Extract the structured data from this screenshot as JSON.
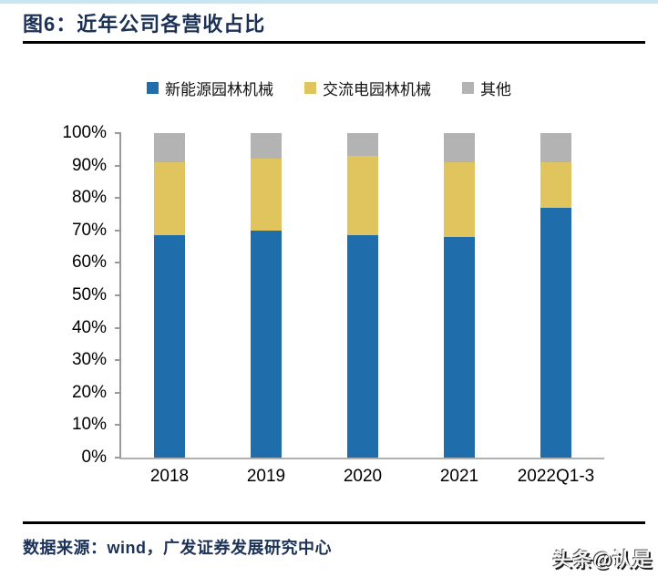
{
  "header": {
    "title": "图6：近年公司各营收占比"
  },
  "legend": [
    {
      "label": "新能源园林机械",
      "color": "#1f6dab"
    },
    {
      "label": "交流电园林机械",
      "color": "#e0c55e"
    },
    {
      "label": "其他",
      "color": "#b3b3b3"
    }
  ],
  "chart_data": {
    "type": "bar",
    "stacked": true,
    "title": "图6：近年公司各营收占比",
    "categories": [
      "2018",
      "2019",
      "2020",
      "2021",
      "2022Q1-3"
    ],
    "series": [
      {
        "name": "新能源园林机械",
        "color": "#1f6dab",
        "values": [
          68.5,
          70,
          68.5,
          68,
          77
        ]
      },
      {
        "name": "交流电园林机械",
        "color": "#e0c55e",
        "values": [
          22.5,
          22,
          24.5,
          23,
          14
        ]
      },
      {
        "name": "其他",
        "color": "#b3b3b3",
        "values": [
          9,
          8,
          7,
          9,
          9
        ]
      }
    ],
    "xlabel": "",
    "ylabel": "",
    "ylim": [
      0,
      100
    ],
    "y_ticks": [
      "100%",
      "90%",
      "80%",
      "70%",
      "60%",
      "50%",
      "40%",
      "30%",
      "20%",
      "10%",
      "0%"
    ],
    "grid": false,
    "legend_position": "top",
    "unit": "percent"
  },
  "footer": {
    "source": "数据来源：wind，广发证券发展研究中心",
    "watermark": "头条@认是"
  },
  "colors": {
    "title_text": "#1c3156",
    "top_accent": "#c7e6f4",
    "axis_line": "#9a9a9a",
    "tick_mark": "#9a9a9a",
    "bottom_axis": "#b0b0b0"
  }
}
